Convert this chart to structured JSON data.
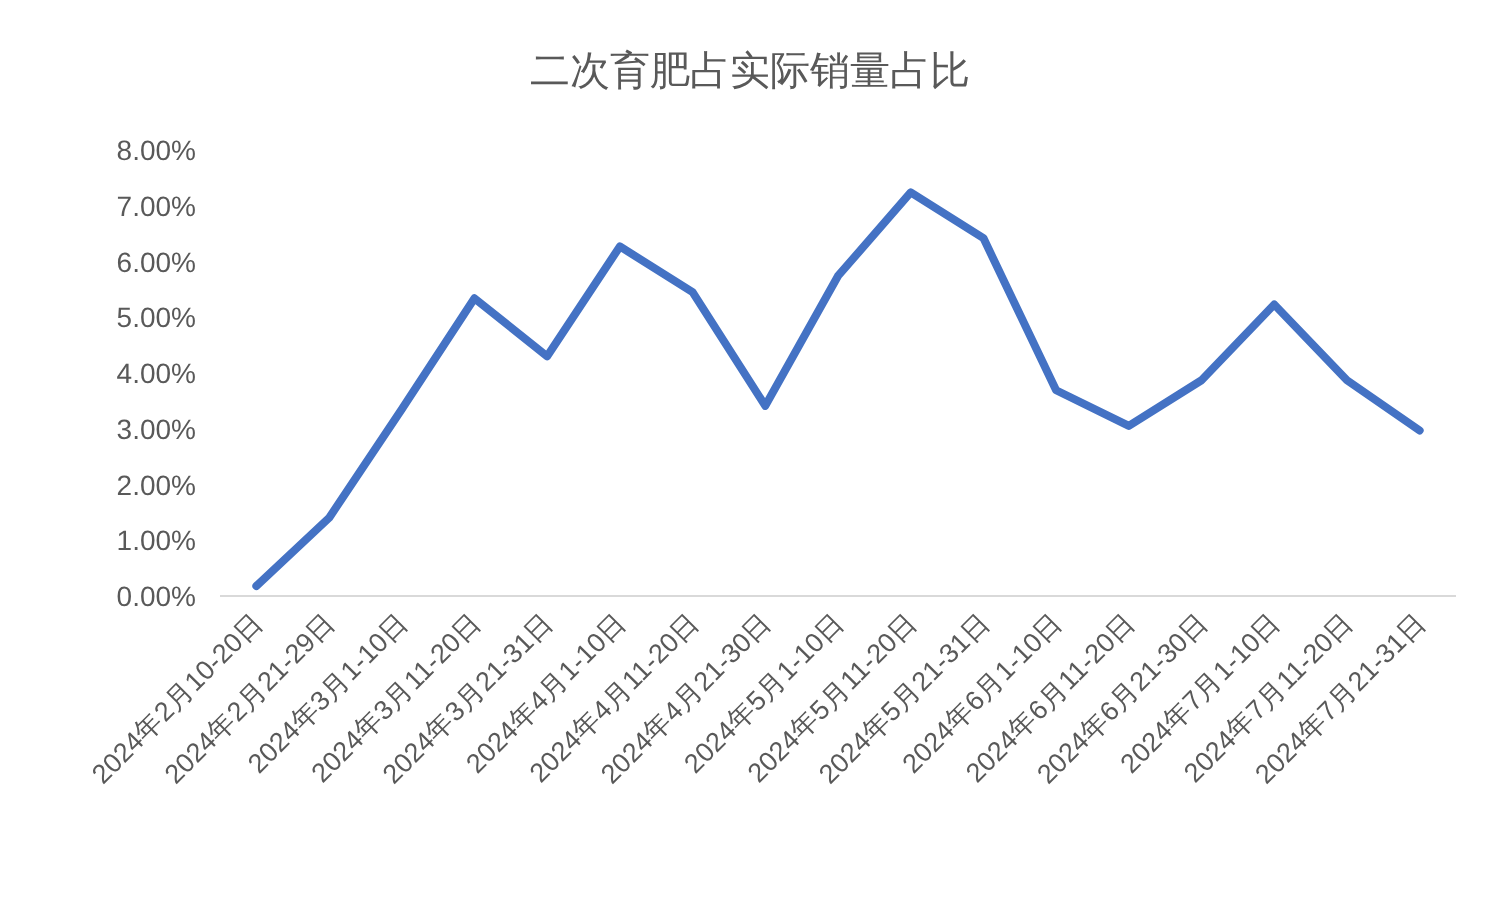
{
  "chart_data": {
    "type": "line",
    "title": "二次育肥占实际销量占比",
    "categories": [
      "2024年2月10-20日",
      "2024年2月21-29日",
      "2024年3月1-10日",
      "2024年3月11-20日",
      "2024年3月21-31日",
      "2024年4月1-10日",
      "2024年4月11-20日",
      "2024年4月21-30日",
      "2024年5月1-10日",
      "2024年5月11-20日",
      "2024年5月21-31日",
      "2024年6月1-10日",
      "2024年6月11-20日",
      "2024年6月21-30日",
      "2024年7月1-10日",
      "2024年7月11-20日",
      "2024年7月21-31日"
    ],
    "series": [
      {
        "color": "#4472c4",
        "values": [
          0.18,
          1.4,
          3.35,
          5.34,
          4.3,
          6.27,
          5.45,
          3.41,
          5.74,
          7.24,
          6.42,
          3.69,
          3.05,
          3.87,
          5.23,
          3.87,
          2.97
        ]
      }
    ],
    "ylim": [
      0,
      8
    ],
    "yticks": [
      {
        "value": 0,
        "label": "0.00%"
      },
      {
        "value": 1,
        "label": "1.00%"
      },
      {
        "value": 2,
        "label": "2.00%"
      },
      {
        "value": 3,
        "label": "3.00%"
      },
      {
        "value": 4,
        "label": "4.00%"
      },
      {
        "value": 5,
        "label": "5.00%"
      },
      {
        "value": 6,
        "label": "6.00%"
      },
      {
        "value": 7,
        "label": "7.00%"
      },
      {
        "value": 8,
        "label": "8.00%"
      }
    ],
    "grid": false,
    "marker": "none",
    "line_style": "solid"
  }
}
